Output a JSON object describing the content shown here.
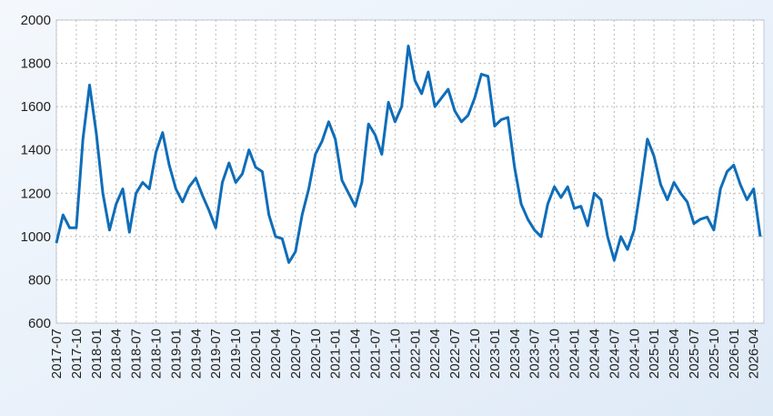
{
  "chart_data": {
    "type": "line",
    "categories": [
      "2017-07",
      null,
      null,
      "2017-10",
      null,
      null,
      "2018-01",
      null,
      null,
      "2018-04",
      null,
      null,
      "2018-07",
      null,
      null,
      "2018-10",
      null,
      null,
      "2019-01",
      null,
      null,
      "2019-04",
      null,
      null,
      "2019-07",
      null,
      null,
      "2019-10",
      null,
      null,
      "2020-01",
      null,
      null,
      "2020-04",
      null,
      null,
      "2020-07",
      null,
      null,
      "2020-10",
      null,
      null,
      "2021-01",
      null,
      null,
      "2021-04",
      null,
      null,
      "2021-07",
      null,
      null,
      "2021-10",
      null,
      null,
      "2022-01",
      null,
      null,
      "2022-04",
      null,
      null,
      "2022-07",
      null,
      null,
      "2022-10",
      null,
      null,
      "2023-01",
      null,
      null,
      "2023-04",
      null,
      null,
      "2023-07",
      null,
      null,
      "2023-10",
      null,
      null,
      "2024-01",
      null,
      null,
      "2024-04",
      null,
      null,
      "2024-07",
      null,
      null,
      "2024-10",
      null,
      null,
      "2025-01",
      null,
      null,
      "2025-04",
      null,
      null,
      "2025-07",
      null,
      null,
      "2025-10",
      null,
      null,
      "2026-01",
      null,
      null,
      "2026-04",
      null
    ],
    "values": [
      970,
      1100,
      1040,
      1040,
      1450,
      1700,
      1480,
      1200,
      1030,
      1150,
      1220,
      1020,
      1200,
      1250,
      1220,
      1390,
      1480,
      1330,
      1220,
      1160,
      1230,
      1270,
      1190,
      1120,
      1040,
      1250,
      1340,
      1250,
      1290,
      1400,
      1320,
      1300,
      1100,
      1000,
      990,
      880,
      930,
      1100,
      1220,
      1380,
      1440,
      1530,
      1450,
      1260,
      1200,
      1140,
      1250,
      1520,
      1470,
      1380,
      1620,
      1530,
      1600,
      1880,
      1720,
      1660,
      1760,
      1600,
      1640,
      1680,
      1580,
      1530,
      1560,
      1640,
      1750,
      1740,
      1510,
      1540,
      1550,
      1320,
      1150,
      1080,
      1030,
      1000,
      1150,
      1230,
      1180,
      1230,
      1130,
      1140,
      1050,
      1200,
      1170,
      1000,
      890,
      1000,
      940,
      1030,
      1230,
      1450,
      1370,
      1240,
      1170,
      1250,
      1200,
      1160,
      1060,
      1080,
      1090,
      1030,
      1220,
      1300,
      1330,
      1240,
      1170,
      1220,
      1000
    ],
    "color": "#0f6db8",
    "ylim": [
      600,
      2000
    ],
    "yticks": [
      600,
      800,
      1000,
      1200,
      1400,
      1600,
      1800,
      2000
    ],
    "grid": true
  }
}
